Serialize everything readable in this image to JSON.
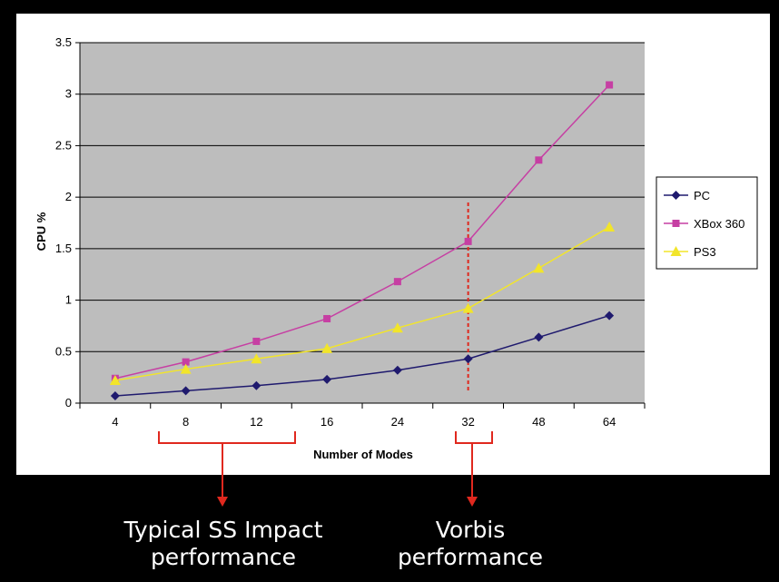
{
  "chart_data": {
    "type": "line",
    "title": "",
    "xlabel": "Number of Modes",
    "ylabel": "CPU %",
    "categories": [
      "4",
      "8",
      "12",
      "16",
      "24",
      "32",
      "48",
      "64"
    ],
    "ylim": [
      0,
      3.5
    ],
    "yticks": [
      "0",
      "0.5",
      "1",
      "1.5",
      "2",
      "2.5",
      "3",
      "3.5"
    ],
    "grid": true,
    "legend_position": "right",
    "series": [
      {
        "name": "PC",
        "color": "#1f1a6e",
        "marker": "diamond",
        "values": [
          0.07,
          0.12,
          0.17,
          0.23,
          0.32,
          0.43,
          0.64,
          0.85
        ]
      },
      {
        "name": "XBox 360",
        "color": "#c63fa3",
        "marker": "square",
        "values": [
          0.24,
          0.4,
          0.6,
          0.82,
          1.18,
          1.57,
          2.36,
          3.09
        ]
      },
      {
        "name": "PS3",
        "color": "#f2e52a",
        "marker": "triangle",
        "values": [
          0.22,
          0.33,
          0.43,
          0.53,
          0.73,
          0.92,
          1.31,
          1.71
        ]
      }
    ],
    "annotations": {
      "vertical_marker_category": "32",
      "vertical_marker_color": "#e0281e",
      "left_caption": [
        "Typical SS Impact",
        "performance"
      ],
      "right_caption": [
        "Vorbis",
        "performance"
      ]
    }
  }
}
